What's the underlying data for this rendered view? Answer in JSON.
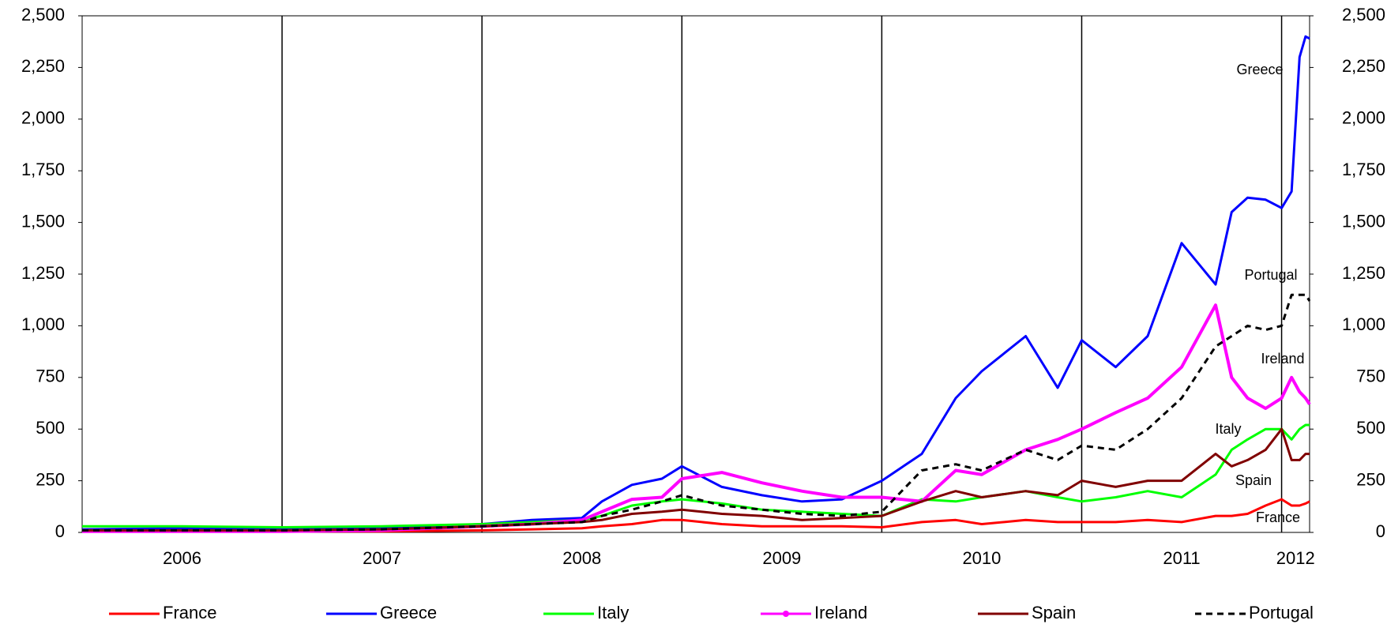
{
  "chart_data": {
    "type": "line",
    "x": [
      2006,
      2006.5,
      2007,
      2007.5,
      2008,
      2008.25,
      2008.5,
      2008.6,
      2008.75,
      2008.9,
      2009.0,
      2009.2,
      2009.4,
      2009.6,
      2009.8,
      2010.0,
      2010.2,
      2010.37,
      2010.5,
      2010.72,
      2010.88,
      2011.0,
      2011.17,
      2011.33,
      2011.5,
      2011.67,
      2011.75,
      2011.83,
      2011.92,
      2012.0,
      2012.05,
      2012.09,
      2012.12,
      2012.14
    ],
    "series": [
      {
        "name": "France",
        "color": "#ff0000",
        "values": [
          5,
          5,
          5,
          5,
          10,
          15,
          20,
          30,
          40,
          60,
          60,
          40,
          30,
          30,
          30,
          25,
          50,
          60,
          40,
          60,
          50,
          50,
          50,
          60,
          50,
          80,
          80,
          90,
          130,
          160,
          130,
          130,
          140,
          150
        ]
      },
      {
        "name": "Greece",
        "color": "#0000ff",
        "values": [
          15,
          20,
          15,
          20,
          40,
          60,
          70,
          150,
          230,
          260,
          320,
          220,
          180,
          150,
          160,
          250,
          380,
          650,
          780,
          950,
          700,
          930,
          800,
          950,
          1400,
          1200,
          1550,
          1620,
          1610,
          1570,
          1650,
          2300,
          2400,
          2390
        ]
      },
      {
        "name": "Italy",
        "color": "#00ff00",
        "values": [
          30,
          30,
          25,
          30,
          40,
          50,
          60,
          80,
          130,
          150,
          160,
          140,
          110,
          100,
          90,
          80,
          160,
          150,
          170,
          200,
          170,
          150,
          170,
          200,
          170,
          280,
          400,
          450,
          500,
          500,
          450,
          500,
          520,
          520
        ]
      },
      {
        "name": "Ireland",
        "color": "#ff00ff",
        "marker": "circle",
        "values": [
          5,
          5,
          5,
          10,
          30,
          40,
          60,
          100,
          160,
          170,
          260,
          290,
          240,
          200,
          170,
          170,
          150,
          300,
          280,
          400,
          450,
          500,
          580,
          650,
          800,
          1100,
          750,
          650,
          600,
          650,
          750,
          680,
          650,
          620
        ]
      },
      {
        "name": "Spain",
        "color": "#800000",
        "values": [
          10,
          10,
          10,
          15,
          30,
          40,
          50,
          60,
          90,
          100,
          110,
          90,
          80,
          60,
          70,
          80,
          150,
          200,
          170,
          200,
          180,
          250,
          220,
          250,
          250,
          380,
          320,
          350,
          400,
          500,
          350,
          350,
          380,
          380
        ]
      },
      {
        "name": "Portugal",
        "color": "#000000",
        "linestyle": "dashed",
        "values": [
          10,
          10,
          10,
          15,
          30,
          40,
          50,
          80,
          110,
          150,
          180,
          130,
          110,
          90,
          80,
          100,
          300,
          330,
          300,
          400,
          350,
          420,
          400,
          500,
          650,
          900,
          950,
          1000,
          980,
          1000,
          1150,
          1150,
          1150,
          1120
        ]
      }
    ],
    "annotations": [
      "Greece",
      "Portugal",
      "Ireland",
      "Italy",
      "Spain",
      "France"
    ],
    "xlim": [
      2006,
      2012.14
    ],
    "xticks": [
      {
        "value": 2006.5,
        "label": "2006"
      },
      {
        "value": 2007.5,
        "label": "2007"
      },
      {
        "value": 2008.5,
        "label": "2008"
      },
      {
        "value": 2009.5,
        "label": "2009"
      },
      {
        "value": 2010.5,
        "label": "2010"
      },
      {
        "value": 2011.5,
        "label": "2011"
      },
      {
        "value": 2012.07,
        "label": "2012"
      }
    ],
    "xgrid": [
      2007,
      2008,
      2009,
      2010,
      2011,
      2012
    ],
    "ylim": [
      0,
      2500
    ],
    "yticks": [
      0,
      250,
      500,
      750,
      {
        "value": 1000,
        "label": "1,000"
      },
      {
        "value": 1250,
        "label": "1,250"
      },
      {
        "value": 1500,
        "label": "1,500"
      },
      {
        "value": 1750,
        "label": "1,750"
      },
      {
        "value": 2000,
        "label": "2,000"
      },
      {
        "value": 2250,
        "label": "2,250"
      },
      {
        "value": 2500,
        "label": "2,500"
      }
    ],
    "y2lim": [
      0,
      2500
    ],
    "y2ticks": [
      0,
      250,
      500,
      750,
      {
        "value": 1000,
        "label": "1,000"
      },
      {
        "value": 1250,
        "label": "1,250"
      },
      {
        "value": 1500,
        "label": "1,500"
      },
      {
        "value": 1750,
        "label": "1,750"
      },
      {
        "value": 2000,
        "label": "2,000"
      },
      {
        "value": 2250,
        "label": "2,250"
      },
      {
        "value": 2500,
        "label": "2,500"
      }
    ],
    "legend": "bottom"
  }
}
